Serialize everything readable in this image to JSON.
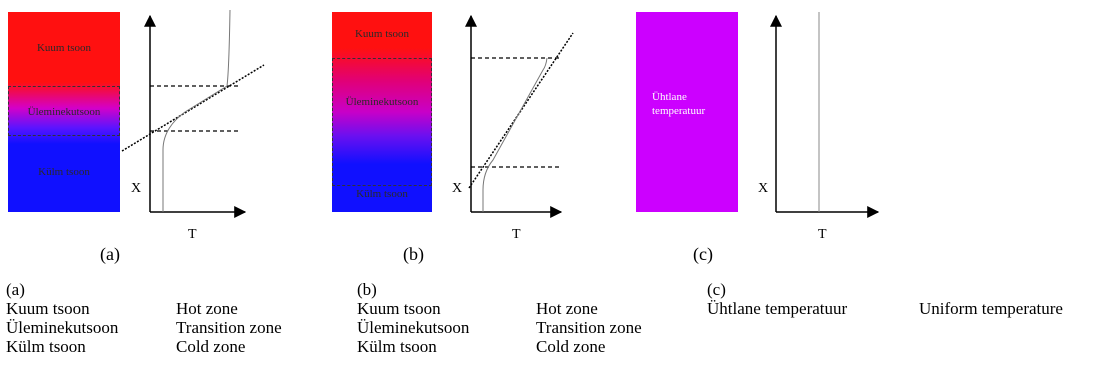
{
  "panels": [
    {
      "caption": "(a)",
      "zones": {
        "hot": "Kuum tsoon",
        "transition": "Üleminekutsoon",
        "cold": "Külm tsoon"
      },
      "axes": {
        "x": "X",
        "t": "T"
      }
    },
    {
      "caption": "(b)",
      "zones": {
        "hot": "Kuum tsoon",
        "transition": "Üleminekutsoon",
        "cold": "Külm tsoon"
      },
      "axes": {
        "x": "X",
        "t": "T"
      }
    },
    {
      "caption": "(c)",
      "zones": {
        "uniform": "Ühtlane temperatuur"
      },
      "axes": {
        "x": "X",
        "t": "T"
      }
    }
  ],
  "legend": [
    {
      "caption": "(a)",
      "rows": [
        {
          "et": "Kuum tsoon",
          "en": "Hot zone"
        },
        {
          "et": "Üleminekutsoon",
          "en": "Transition zone"
        },
        {
          "et": "Külm tsoon",
          "en": "Cold zone"
        }
      ]
    },
    {
      "caption": "(b)",
      "rows": [
        {
          "et": "Kuum tsoon",
          "en": "Hot zone"
        },
        {
          "et": "Üleminekutsoon",
          "en": "Transition zone"
        },
        {
          "et": "Külm tsoon",
          "en": "Cold zone"
        }
      ]
    },
    {
      "caption": "(c)",
      "rows": [
        {
          "et": "Ühtlane temperatuur",
          "en": "Uniform temperature"
        }
      ]
    }
  ],
  "colors": {
    "hot": "#ff1010",
    "cold": "#1010ff",
    "uniform": "#cc00ff"
  }
}
